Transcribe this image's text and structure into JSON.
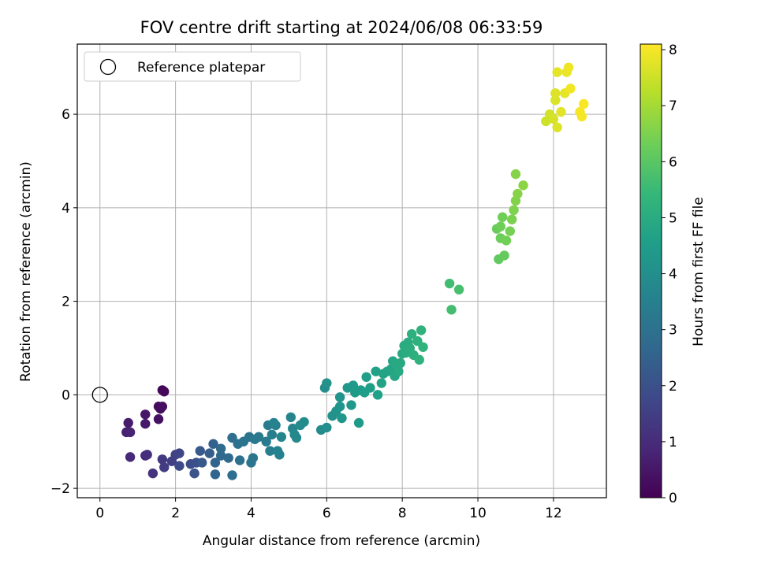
{
  "chart_data": {
    "type": "scatter",
    "title": "FOV centre drift starting at 2024/06/08 06:33:59",
    "xlabel": "Angular distance from reference (arcmin)",
    "ylabel": "Rotation from reference (arcmin)",
    "xlim": [
      -0.6,
      13.4
    ],
    "ylim": [
      -2.2,
      7.5
    ],
    "x_ticks": [
      0,
      2,
      4,
      6,
      8,
      10,
      12
    ],
    "y_ticks": [
      -2,
      0,
      2,
      4,
      6
    ],
    "grid": true,
    "legend": {
      "position": "top-left",
      "entries": [
        {
          "label": "Reference platepar",
          "marker": "open-circle",
          "color": "#000000"
        }
      ]
    },
    "reference_point": {
      "x": 0,
      "y": 0
    },
    "colorbar": {
      "label": "Hours from first FF file",
      "min": 0,
      "max": 8.1,
      "ticks": [
        0,
        1,
        2,
        3,
        4,
        5,
        6,
        7,
        8
      ],
      "colormap": "viridis",
      "colors": [
        "#440154",
        "#482878",
        "#3e4989",
        "#31688e",
        "#26828e",
        "#1f9e89",
        "#35b779",
        "#6ece58",
        "#b5de2b",
        "#fde725"
      ]
    },
    "series": [
      {
        "name": "FOV centre",
        "color_by": "hours",
        "points": [
          [
            1.65,
            0.1,
            0.1
          ],
          [
            1.7,
            0.07,
            0.15
          ],
          [
            1.55,
            -0.25,
            0.2
          ],
          [
            1.6,
            -0.3,
            0.25
          ],
          [
            1.65,
            -0.25,
            0.3
          ],
          [
            1.55,
            -0.52,
            0.35
          ],
          [
            1.2,
            -0.42,
            0.5
          ],
          [
            1.2,
            -0.62,
            0.55
          ],
          [
            0.75,
            -0.6,
            0.6
          ],
          [
            0.7,
            -0.8,
            0.7
          ],
          [
            0.8,
            -0.8,
            0.8
          ],
          [
            0.8,
            -1.33,
            0.9
          ],
          [
            1.2,
            -1.3,
            1.0
          ],
          [
            1.25,
            -1.28,
            1.1
          ],
          [
            1.4,
            -1.68,
            1.2
          ],
          [
            1.65,
            -1.38,
            1.35
          ],
          [
            1.7,
            -1.55,
            1.45
          ],
          [
            1.9,
            -1.42,
            1.55
          ],
          [
            2.0,
            -1.28,
            1.6
          ],
          [
            2.1,
            -1.25,
            1.7
          ],
          [
            2.1,
            -1.52,
            1.8
          ],
          [
            2.4,
            -1.48,
            1.9
          ],
          [
            2.55,
            -1.45,
            2.0
          ],
          [
            2.5,
            -1.68,
            2.1
          ],
          [
            2.7,
            -1.45,
            2.2
          ],
          [
            2.65,
            -1.2,
            2.3
          ],
          [
            2.9,
            -1.25,
            2.4
          ],
          [
            3.0,
            -1.05,
            2.5
          ],
          [
            3.05,
            -1.45,
            2.6
          ],
          [
            3.05,
            -1.7,
            2.6
          ],
          [
            3.2,
            -1.3,
            2.7
          ],
          [
            3.2,
            -1.15,
            2.8
          ],
          [
            3.4,
            -1.35,
            2.8
          ],
          [
            3.5,
            -1.72,
            2.9
          ],
          [
            3.5,
            -0.92,
            2.9
          ],
          [
            3.65,
            -1.05,
            3.0
          ],
          [
            3.7,
            -1.4,
            3.0
          ],
          [
            3.8,
            -1.0,
            3.1
          ],
          [
            3.95,
            -0.9,
            3.1
          ],
          [
            4.0,
            -1.45,
            3.2
          ],
          [
            4.05,
            -1.35,
            3.2
          ],
          [
            4.1,
            -0.95,
            3.3
          ],
          [
            4.2,
            -0.9,
            3.3
          ],
          [
            4.4,
            -1.0,
            3.4
          ],
          [
            4.45,
            -0.65,
            3.4
          ],
          [
            4.5,
            -1.2,
            3.5
          ],
          [
            4.55,
            -0.85,
            3.5
          ],
          [
            4.65,
            -0.65,
            3.5
          ],
          [
            4.6,
            -0.6,
            3.6
          ],
          [
            4.7,
            -1.2,
            3.6
          ],
          [
            4.75,
            -1.28,
            3.6
          ],
          [
            4.8,
            -0.9,
            3.7
          ],
          [
            5.05,
            -0.48,
            3.7
          ],
          [
            5.1,
            -0.72,
            3.75
          ],
          [
            5.15,
            -0.85,
            3.8
          ],
          [
            5.2,
            -0.92,
            3.8
          ],
          [
            5.3,
            -0.65,
            3.85
          ],
          [
            5.4,
            -0.58,
            3.9
          ],
          [
            5.85,
            -0.75,
            3.9
          ],
          [
            6.0,
            -0.7,
            4.0
          ],
          [
            5.95,
            0.15,
            4.0
          ],
          [
            6.0,
            0.25,
            4.1
          ],
          [
            6.15,
            -0.45,
            4.1
          ],
          [
            6.25,
            -0.35,
            4.15
          ],
          [
            6.35,
            -0.05,
            4.2
          ],
          [
            6.35,
            -0.25,
            4.2
          ],
          [
            6.4,
            -0.5,
            4.25
          ],
          [
            6.55,
            0.15,
            4.3
          ],
          [
            6.65,
            -0.22,
            4.3
          ],
          [
            6.7,
            0.2,
            4.35
          ],
          [
            6.75,
            0.05,
            4.4
          ],
          [
            6.85,
            -0.6,
            4.4
          ],
          [
            6.9,
            0.1,
            4.45
          ],
          [
            7.0,
            0.05,
            4.5
          ],
          [
            7.05,
            0.38,
            4.5
          ],
          [
            7.15,
            0.15,
            4.55
          ],
          [
            7.3,
            0.5,
            4.6
          ],
          [
            7.35,
            0.0,
            4.6
          ],
          [
            7.45,
            0.25,
            4.65
          ],
          [
            7.5,
            0.45,
            4.7
          ],
          [
            7.6,
            0.5,
            4.7
          ],
          [
            7.7,
            0.55,
            4.75
          ],
          [
            7.75,
            0.72,
            4.8
          ],
          [
            7.8,
            0.4,
            4.8
          ],
          [
            7.85,
            0.65,
            4.85
          ],
          [
            7.9,
            0.5,
            4.85
          ],
          [
            7.95,
            0.68,
            4.9
          ],
          [
            8.0,
            0.88,
            4.9
          ],
          [
            8.05,
            1.05,
            4.95
          ],
          [
            8.1,
            0.9,
            5.0
          ],
          [
            8.15,
            1.12,
            5.0
          ],
          [
            8.2,
            1.0,
            5.05
          ],
          [
            8.25,
            1.3,
            5.1
          ],
          [
            8.3,
            0.85,
            5.1
          ],
          [
            8.4,
            1.15,
            5.15
          ],
          [
            8.45,
            0.75,
            5.2
          ],
          [
            8.5,
            1.38,
            5.2
          ],
          [
            8.55,
            1.02,
            5.25
          ],
          [
            9.25,
            2.38,
            5.6
          ],
          [
            9.3,
            1.82,
            5.65
          ],
          [
            9.5,
            2.25,
            5.7
          ],
          [
            10.55,
            2.9,
            6.1
          ],
          [
            10.7,
            2.98,
            6.15
          ],
          [
            10.5,
            3.55,
            6.2
          ],
          [
            10.6,
            3.35,
            6.25
          ],
          [
            10.65,
            3.8,
            6.3
          ],
          [
            10.75,
            3.3,
            6.35
          ],
          [
            10.85,
            3.5,
            6.4
          ],
          [
            10.9,
            3.75,
            6.45
          ],
          [
            10.95,
            3.95,
            6.5
          ],
          [
            11.0,
            4.15,
            6.55
          ],
          [
            11.05,
            4.3,
            6.6
          ],
          [
            11.0,
            4.72,
            6.6
          ],
          [
            11.2,
            4.48,
            6.65
          ],
          [
            10.6,
            3.6,
            6.3
          ],
          [
            11.8,
            5.85,
            7.5
          ],
          [
            11.9,
            6.0,
            7.55
          ],
          [
            12.0,
            5.9,
            7.6
          ],
          [
            12.05,
            6.3,
            7.65
          ],
          [
            12.05,
            6.45,
            7.7
          ],
          [
            12.1,
            5.72,
            7.7
          ],
          [
            12.2,
            6.05,
            7.75
          ],
          [
            12.1,
            6.9,
            7.8
          ],
          [
            12.3,
            6.45,
            7.8
          ],
          [
            12.35,
            6.9,
            7.85
          ],
          [
            12.4,
            7.0,
            7.9
          ],
          [
            12.45,
            6.55,
            7.95
          ],
          [
            12.7,
            6.05,
            8.0
          ],
          [
            12.75,
            5.95,
            8.0
          ],
          [
            12.8,
            6.22,
            8.05
          ]
        ]
      }
    ]
  }
}
